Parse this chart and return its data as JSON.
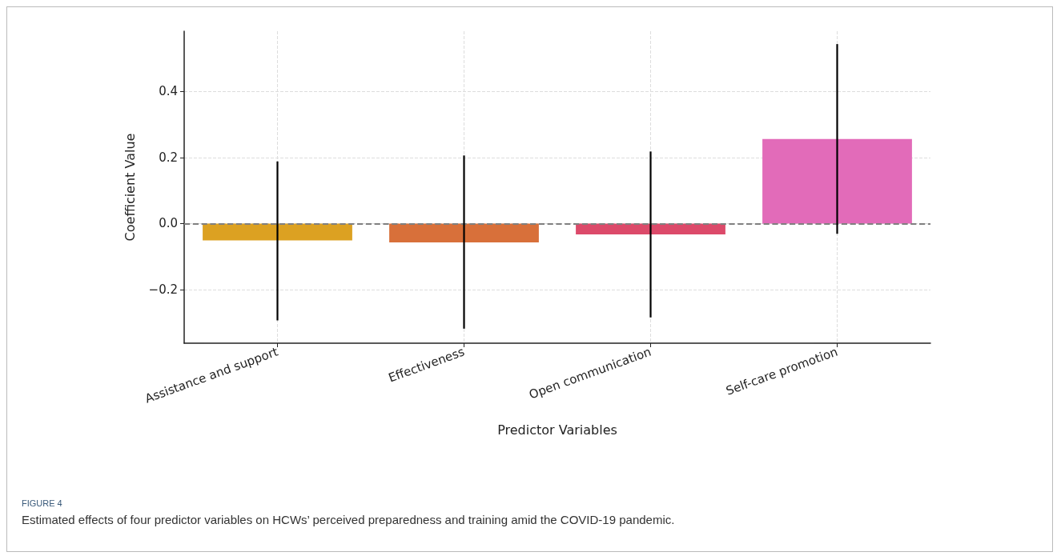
{
  "chart_data": {
    "type": "bar",
    "xlabel": "Predictor Variables",
    "ylabel": "Coefficient Value",
    "categories": [
      "Assistance and support",
      "Effectiveness",
      "Open communication",
      "Self-care promotion"
    ],
    "values": [
      -0.051,
      -0.057,
      -0.033,
      0.256
    ],
    "colors": [
      "#dca122",
      "#d8703a",
      "#dc4a6a",
      "#e26bb9"
    ],
    "errors": [
      [
        -0.293,
        0.188
      ],
      [
        -0.318,
        0.206
      ],
      [
        -0.284,
        0.218
      ],
      [
        -0.031,
        0.543
      ]
    ],
    "ylim": [
      -0.362,
      0.582
    ],
    "yticks": [
      {
        "value": -0.2,
        "label": "−0.2"
      },
      {
        "value": 0,
        "label": "0.0"
      },
      {
        "value": 0.2,
        "label": "0.2"
      },
      {
        "value": 0.4,
        "label": "0.4"
      }
    ],
    "ref_lines": [
      {
        "axis": "y",
        "value": 0,
        "color": "#808080",
        "line_style": "dashed"
      }
    ],
    "grid": true,
    "annotations": [
      "FIGURE 4",
      "Estimated effects of four predictor variables on HCWs’ perceived preparedness and training amid the COVID-19 pandemic."
    ]
  }
}
